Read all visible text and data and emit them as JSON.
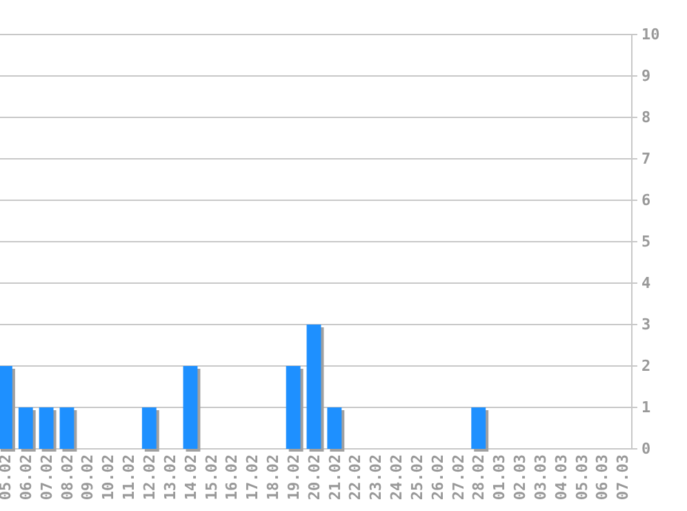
{
  "chart_data": {
    "type": "bar",
    "categories": [
      "05.02",
      "06.02",
      "07.02",
      "08.02",
      "09.02",
      "10.02",
      "11.02",
      "12.02",
      "13.02",
      "14.02",
      "15.02",
      "16.02",
      "17.02",
      "18.02",
      "19.02",
      "20.02",
      "21.02",
      "22.02",
      "23.02",
      "24.02",
      "25.02",
      "26.02",
      "27.02",
      "28.02",
      "01.03",
      "02.03",
      "03.03",
      "04.03",
      "05.03",
      "06.03",
      "07.03"
    ],
    "values": [
      2,
      1,
      1,
      1,
      0,
      0,
      0,
      1,
      0,
      2,
      0,
      0,
      0,
      0,
      2,
      3,
      1,
      0,
      0,
      0,
      0,
      0,
      0,
      1,
      0,
      0,
      0,
      0,
      0,
      0,
      0
    ],
    "color": "#1e90ff",
    "ylim": [
      0,
      10
    ],
    "yticks": [
      0,
      1,
      2,
      3,
      4,
      5,
      6,
      7,
      8,
      9,
      10
    ],
    "grid": "y"
  }
}
